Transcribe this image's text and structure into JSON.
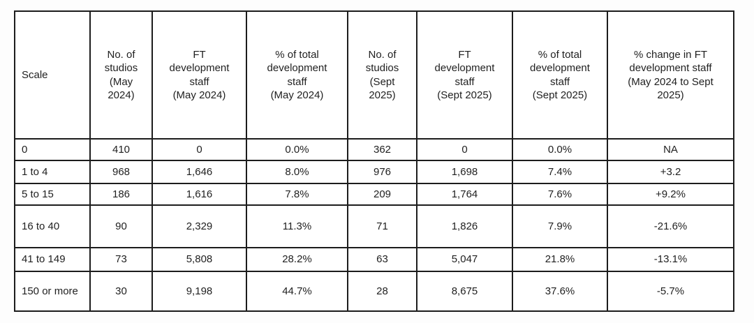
{
  "chart_data": {
    "type": "table",
    "columns": [
      "Scale",
      "No. of\nstudios\n(May\n2024)",
      "FT\ndevelopment\nstaff\n(May 2024)",
      "% of total\ndevelopment\nstaff\n(May 2024)",
      "No. of\nstudios\n(Sept\n2025)",
      "FT\ndevelopment\nstaff\n(Sept 2025)",
      "% of total\ndevelopment\nstaff\n(Sept 2025)",
      "% change in FT\ndevelopment staff\n(May 2024 to Sept\n2025)"
    ],
    "rows": [
      [
        "0",
        "410",
        "0",
        "0.0%",
        "362",
        "0",
        "0.0%",
        "NA"
      ],
      [
        "1 to 4",
        "968",
        "1,646",
        "8.0%",
        "976",
        "1,698",
        "7.4%",
        "+3.2"
      ],
      [
        "5 to 15",
        "186",
        "1,616",
        "7.8%",
        "209",
        "1,764",
        "7.6%",
        "+9.2%"
      ],
      [
        "16 to 40",
        "90",
        "2,329",
        "11.3%",
        "71",
        "1,826",
        "7.9%",
        "-21.6%"
      ],
      [
        "41 to 149",
        "73",
        "5,808",
        "28.2%",
        "63",
        "5,047",
        "21.8%",
        "-13.1%"
      ],
      [
        "150 or more",
        "30",
        "9,198",
        "44.7%",
        "28",
        "8,675",
        "37.6%",
        "-5.7%"
      ]
    ],
    "colors": {
      "border": "#1c1c1c",
      "text": "#1f1f1f",
      "background": "#ffffff"
    },
    "layout": {
      "grid": "full-borders",
      "header_align": "center",
      "first_column_align": "left",
      "value_align": "center"
    }
  }
}
